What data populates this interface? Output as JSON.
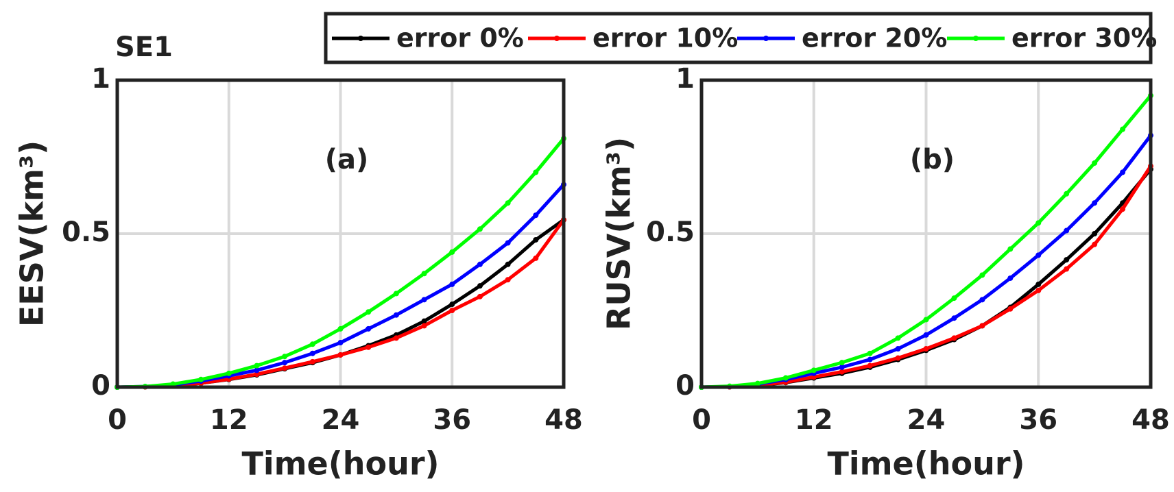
{
  "figure_label": "SE1",
  "chart_data": [
    {
      "type": "line",
      "title": "(a)",
      "x_label": "Time(hour)",
      "y_label": "EESV(km³)",
      "x": [
        0,
        3,
        6,
        9,
        12,
        15,
        18,
        21,
        24,
        27,
        30,
        33,
        36,
        39,
        42,
        45,
        48
      ],
      "xlim": [
        0,
        48
      ],
      "xticks": [
        0,
        12,
        24,
        36,
        48
      ],
      "ylim": [
        0,
        1
      ],
      "yticks": [
        0,
        0.5,
        1
      ],
      "grid": true,
      "series": [
        {
          "name": "error 0%",
          "color": "#000000",
          "values": [
            0,
            0.001,
            0.005,
            0.013,
            0.025,
            0.04,
            0.06,
            0.08,
            0.105,
            0.135,
            0.17,
            0.215,
            0.27,
            0.33,
            0.4,
            0.48,
            0.545
          ]
        },
        {
          "name": "error 10%",
          "color": "#ff0000",
          "values": [
            0,
            0.001,
            0.005,
            0.013,
            0.026,
            0.042,
            0.062,
            0.083,
            0.105,
            0.13,
            0.16,
            0.2,
            0.25,
            0.295,
            0.35,
            0.42,
            0.545
          ]
        },
        {
          "name": "error 20%",
          "color": "#0000ff",
          "values": [
            0,
            0.002,
            0.008,
            0.02,
            0.037,
            0.055,
            0.08,
            0.11,
            0.145,
            0.19,
            0.235,
            0.285,
            0.335,
            0.4,
            0.47,
            0.56,
            0.66
          ]
        },
        {
          "name": "error 30%",
          "color": "#00ff00",
          "values": [
            0,
            0.002,
            0.01,
            0.025,
            0.045,
            0.07,
            0.1,
            0.14,
            0.19,
            0.245,
            0.305,
            0.37,
            0.44,
            0.515,
            0.6,
            0.7,
            0.81
          ]
        }
      ]
    },
    {
      "type": "line",
      "title": "(b)",
      "x_label": "Time(hour)",
      "y_label": "RUSV(km³)",
      "x": [
        0,
        3,
        6,
        9,
        12,
        15,
        18,
        21,
        24,
        27,
        30,
        33,
        36,
        39,
        42,
        45,
        48
      ],
      "xlim": [
        0,
        48
      ],
      "xticks": [
        0,
        12,
        24,
        36,
        48
      ],
      "ylim": [
        0,
        1
      ],
      "yticks": [
        0,
        0.5,
        1
      ],
      "grid": true,
      "series": [
        {
          "name": "error 0%",
          "color": "#000000",
          "values": [
            0,
            0.001,
            0.006,
            0.015,
            0.03,
            0.045,
            0.065,
            0.09,
            0.12,
            0.155,
            0.2,
            0.26,
            0.335,
            0.415,
            0.5,
            0.6,
            0.71
          ]
        },
        {
          "name": "error 10%",
          "color": "#ff0000",
          "values": [
            0,
            0.001,
            0.006,
            0.016,
            0.033,
            0.05,
            0.07,
            0.095,
            0.125,
            0.16,
            0.2,
            0.255,
            0.315,
            0.385,
            0.465,
            0.58,
            0.72
          ]
        },
        {
          "name": "error 20%",
          "color": "#0000ff",
          "values": [
            0,
            0.002,
            0.01,
            0.025,
            0.045,
            0.065,
            0.09,
            0.125,
            0.17,
            0.225,
            0.285,
            0.355,
            0.43,
            0.51,
            0.6,
            0.7,
            0.82
          ]
        },
        {
          "name": "error 30%",
          "color": "#00ff00",
          "values": [
            0,
            0.003,
            0.012,
            0.03,
            0.055,
            0.08,
            0.11,
            0.16,
            0.22,
            0.29,
            0.365,
            0.45,
            0.535,
            0.63,
            0.73,
            0.84,
            0.95
          ]
        }
      ]
    }
  ]
}
